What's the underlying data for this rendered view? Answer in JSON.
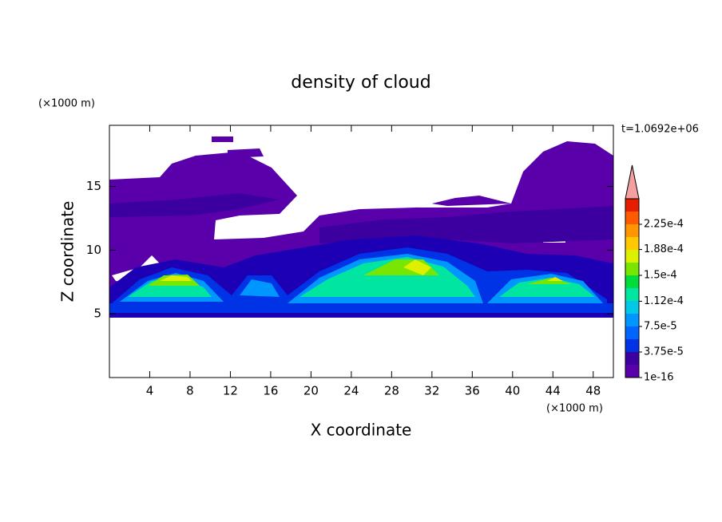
{
  "chart_data": {
    "type": "contour",
    "title": "density of cloud",
    "xlabel": "X coordinate",
    "ylabel": "Z coordinate",
    "xunit": "(×1000 m)",
    "yunit": "(×1000 m)",
    "annotation": "t=1.0692e+06",
    "xlim": [
      0,
      50
    ],
    "ylim": [
      0,
      19.8
    ],
    "xticks": [
      4,
      8,
      12,
      16,
      20,
      24,
      28,
      32,
      36,
      40,
      44,
      48
    ],
    "yticks": [
      5,
      10,
      15
    ],
    "colorbar": {
      "clim": [
        1e-16,
        0.0002625
      ],
      "colors": [
        "#5a00aa",
        "#3c00a0",
        "#1e00b4",
        "#0000d2",
        "#0032e6",
        "#0064ff",
        "#0096ff",
        "#00c8e6",
        "#00e6a0",
        "#00dc3c",
        "#78e600",
        "#dcf000",
        "#ffc800",
        "#ff9600",
        "#ff5a00",
        "#e61e00"
      ],
      "over_color": "#f4a0a0",
      "ticks": [
        1e-16,
        {
          "value": 3.75e-05,
          "label": "3.75e-5"
        },
        {
          "value": 7.5e-05,
          "label": "7.5e-5"
        },
        {
          "value": 0.000112,
          "label": "1.12e-4"
        },
        {
          "value": 0.00015,
          "label": "1.5e-4"
        },
        {
          "value": 0.000188,
          "label": "1.88e-4"
        },
        {
          "value": 0.000225,
          "label": "2.25e-4"
        }
      ]
    }
  }
}
